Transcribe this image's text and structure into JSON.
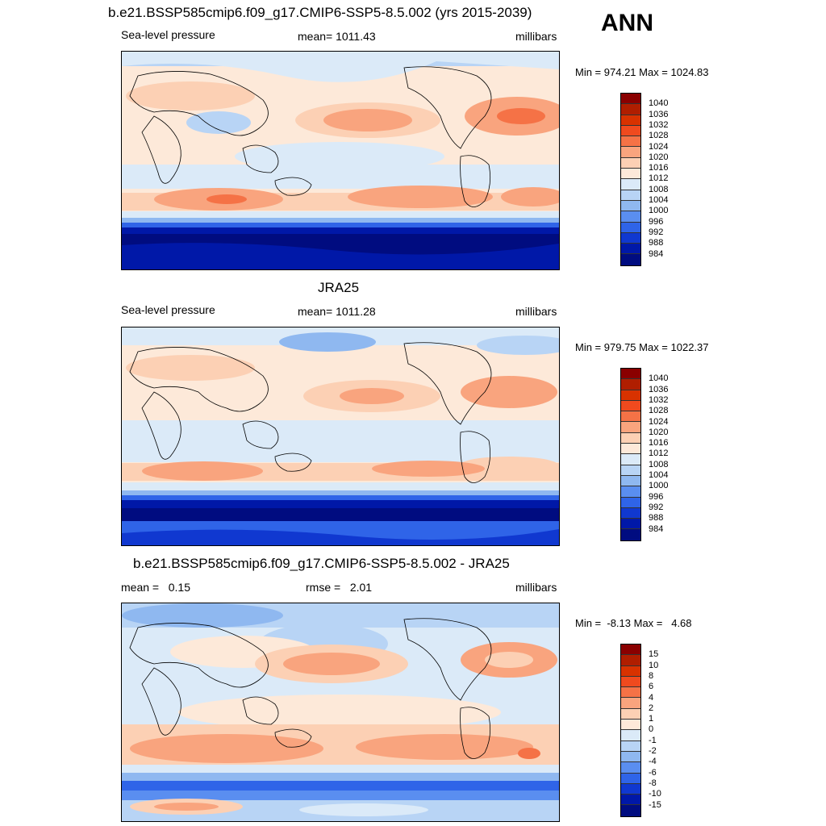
{
  "header": {
    "top_title": "b.e21.BSSP585cmip6.f09_g17.CMIP6-SSP5-8.5.002 (yrs 2015-2039)",
    "season": "ANN"
  },
  "panels": [
    {
      "id": "model",
      "title": "",
      "left_label": "Sea-level pressure",
      "center_label": "mean= 1011.43",
      "right_label": "millibars",
      "minmax": "Min = 974.21 Max = 1024.83",
      "colorbar_labels": [
        "1040",
        "1036",
        "1032",
        "1028",
        "1024",
        "1020",
        "1016",
        "1012",
        "1008",
        "1004",
        "1000",
        "996",
        "992",
        "988",
        "984"
      ],
      "colors": [
        "#8a0000",
        "#b01e00",
        "#d83200",
        "#f04a1e",
        "#f57246",
        "#f9a47e",
        "#fcd0b4",
        "#fde9d9",
        "#dbeaf8",
        "#b8d4f5",
        "#8fb8f0",
        "#5a8ef0",
        "#2f64e8",
        "#1038d0",
        "#0018a8",
        "#000c80"
      ]
    },
    {
      "id": "obs",
      "title": "JRA25",
      "left_label": "Sea-level pressure",
      "center_label": "mean= 1011.28",
      "right_label": "millibars",
      "minmax": "Min = 979.75 Max = 1022.37",
      "colorbar_labels": [
        "1040",
        "1036",
        "1032",
        "1028",
        "1024",
        "1020",
        "1016",
        "1012",
        "1008",
        "1004",
        "1000",
        "996",
        "992",
        "988",
        "984"
      ],
      "colors": [
        "#8a0000",
        "#b01e00",
        "#d83200",
        "#f04a1e",
        "#f57246",
        "#f9a47e",
        "#fcd0b4",
        "#fde9d9",
        "#dbeaf8",
        "#b8d4f5",
        "#8fb8f0",
        "#5a8ef0",
        "#2f64e8",
        "#1038d0",
        "#0018a8",
        "#000c80"
      ]
    },
    {
      "id": "diff",
      "title": "b.e21.BSSP585cmip6.f09_g17.CMIP6-SSP5-8.5.002 - JRA25",
      "left_label": "mean =   0.15",
      "center_label": "rmse =   2.01",
      "right_label": "millibars",
      "minmax": "Min =  -8.13 Max =   4.68",
      "colorbar_labels": [
        "15",
        "10",
        "8",
        "6",
        "4",
        "2",
        "1",
        "0",
        "-1",
        "-2",
        "-4",
        "-6",
        "-8",
        "-10",
        "-15"
      ],
      "colors": [
        "#8a0000",
        "#b01e00",
        "#d83200",
        "#f04a1e",
        "#f57246",
        "#f9a47e",
        "#fcd0b4",
        "#fde9d9",
        "#dbeaf8",
        "#b8d4f5",
        "#8fb8f0",
        "#5a8ef0",
        "#2f64e8",
        "#1038d0",
        "#0018a8",
        "#000c80"
      ]
    }
  ]
}
